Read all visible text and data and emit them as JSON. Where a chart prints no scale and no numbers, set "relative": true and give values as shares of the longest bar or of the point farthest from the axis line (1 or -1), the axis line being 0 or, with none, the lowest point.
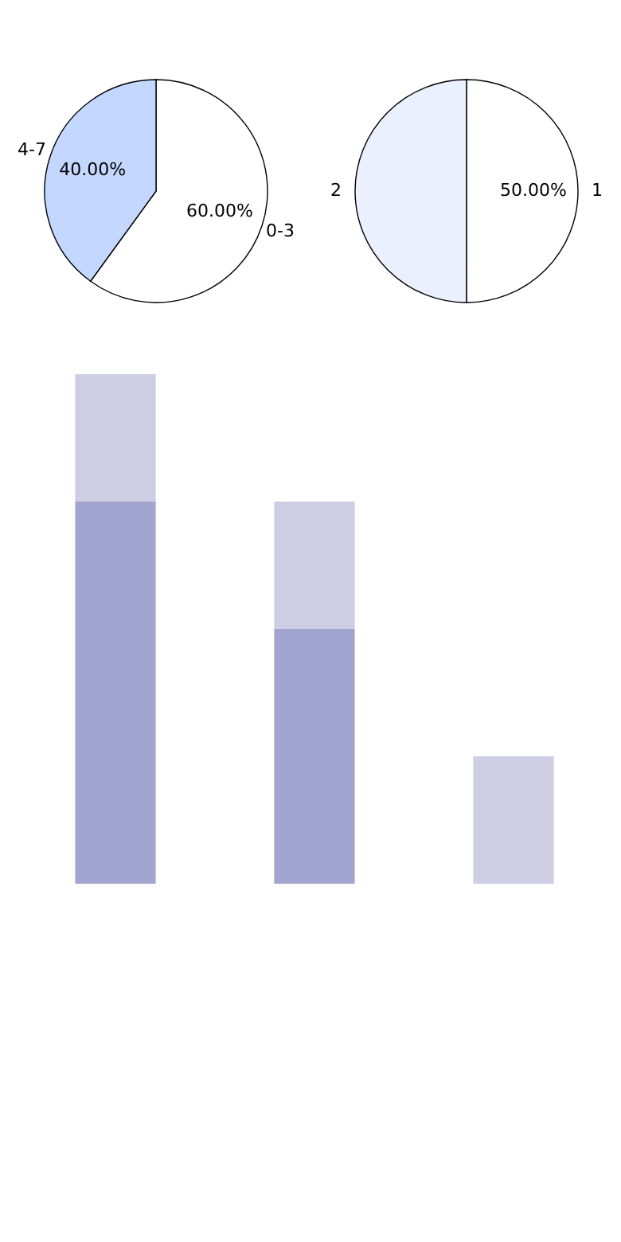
{
  "chart_data": [
    {
      "type": "pie",
      "categories": [
        "0-3",
        "4-7"
      ],
      "values": [
        60,
        40
      ],
      "colors": [
        "#ffffff",
        "#c4d8ff"
      ],
      "value_labels": [
        "60.00%",
        "40.00%"
      ]
    },
    {
      "type": "pie",
      "categories": [
        "1",
        "2"
      ],
      "values": [
        50,
        50
      ],
      "colors": [
        "#ffffff",
        "#eaf0fd"
      ],
      "value_labels": [
        "50.00%",
        null
      ]
    },
    {
      "type": "bar",
      "categories": [
        null,
        null,
        null
      ],
      "relative": true,
      "stacked": true,
      "series": [
        {
          "color": "#a3a5d1",
          "values": [
            0.75,
            0.5,
            0
          ]
        },
        {
          "color": "#cdcde4",
          "values": [
            0.25,
            0.25,
            0.25
          ]
        }
      ]
    }
  ]
}
